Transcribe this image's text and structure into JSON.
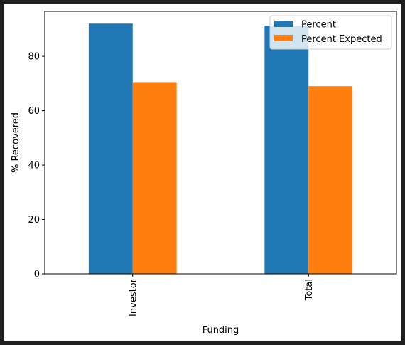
{
  "chart_data": {
    "type": "bar",
    "categories": [
      "Investor",
      "Total"
    ],
    "series": [
      {
        "name": "Percent",
        "values": [
          92.0,
          91.2
        ],
        "color": "#1f77b4"
      },
      {
        "name": "Percent Expected",
        "values": [
          70.5,
          69.0
        ],
        "color": "#ff7f0e"
      }
    ],
    "xlabel": "Funding",
    "ylabel": "% Recovered",
    "ylim": [
      0,
      96.5
    ],
    "yticks": [
      0,
      20,
      40,
      60,
      80
    ],
    "grid": false,
    "legend": "top-right"
  }
}
